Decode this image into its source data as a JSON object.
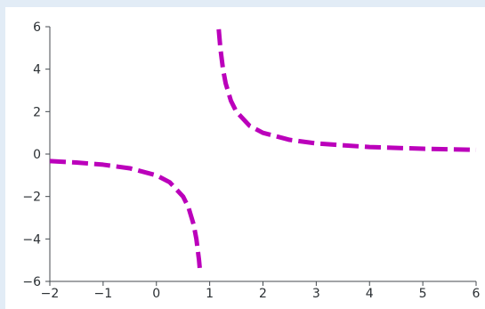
{
  "chart_data": {
    "type": "line",
    "title": "",
    "xlabel": "",
    "ylabel": "",
    "xlim": [
      -2,
      6
    ],
    "ylim": [
      -6,
      6
    ],
    "x_ticks": [
      -2,
      -1,
      0,
      1,
      2,
      3,
      4,
      5,
      6
    ],
    "y_ticks": [
      -6,
      -4,
      -2,
      0,
      2,
      4,
      6
    ],
    "x_tick_labels": [
      "−2",
      "−1",
      "0",
      "1",
      "2",
      "3",
      "4",
      "5",
      "6"
    ],
    "y_tick_labels": [
      "−6",
      "−4",
      "−2",
      "0",
      "2",
      "4",
      "6"
    ],
    "grid": false,
    "line_style": "dashed",
    "series": [
      {
        "color": "#bb00bb",
        "segments": [
          {
            "x": [
              -2.0,
              -1.5,
              -1.0,
              -0.5,
              0.0,
              0.25,
              0.5,
              0.6,
              0.7,
              0.75,
              0.8,
              0.82
            ],
            "y": [
              -0.33,
              -0.4,
              -0.5,
              -0.67,
              -1.0,
              -1.33,
              -2.0,
              -2.5,
              -3.33,
              -4.0,
              -5.0,
              -5.56
            ]
          },
          {
            "x": [
              1.17,
              1.2,
              1.25,
              1.3,
              1.4,
              1.5,
              1.75,
              2.0,
              2.5,
              3.0,
              4.0,
              5.0,
              6.0
            ],
            "y": [
              5.88,
              5.0,
              4.0,
              3.33,
              2.5,
              2.0,
              1.33,
              1.0,
              0.67,
              0.5,
              0.33,
              0.25,
              0.2
            ]
          }
        ]
      }
    ]
  }
}
